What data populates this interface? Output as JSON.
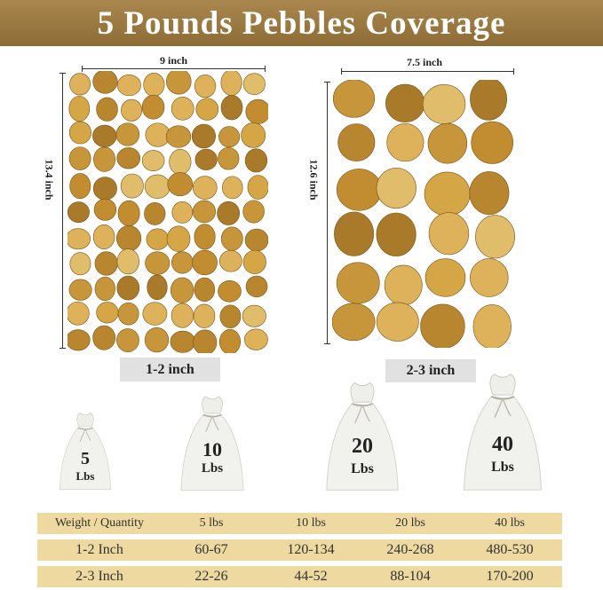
{
  "title": "5 Pounds Pebbles Coverage",
  "colors": {
    "header": "#9a7a42",
    "table_row": "#eed9a0",
    "pebble": "#c99a3c",
    "label_box": "#e1e1e1"
  },
  "left_sample": {
    "width": "9 inch",
    "height": "13.4 inch",
    "size": "1-2 inch"
  },
  "right_sample": {
    "width": "7.5 inch",
    "height": "12.6 inch",
    "size": "2-3 inch"
  },
  "bags": [
    {
      "weight": "5",
      "unit": "Lbs"
    },
    {
      "weight": "10",
      "unit": "Lbs"
    },
    {
      "weight": "20",
      "unit": "Lbs"
    },
    {
      "weight": "40",
      "unit": "Lbs"
    }
  ],
  "table": {
    "header": [
      "Weight / Quantity",
      "5 lbs",
      "10 lbs",
      "20 lbs",
      "40 lbs"
    ],
    "rows": [
      [
        "1-2 Inch",
        "60-67",
        "120-134",
        "240-268",
        "480-530"
      ],
      [
        "2-3 Inch",
        "22-26",
        "44-52",
        "88-104",
        "170-200"
      ]
    ]
  }
}
